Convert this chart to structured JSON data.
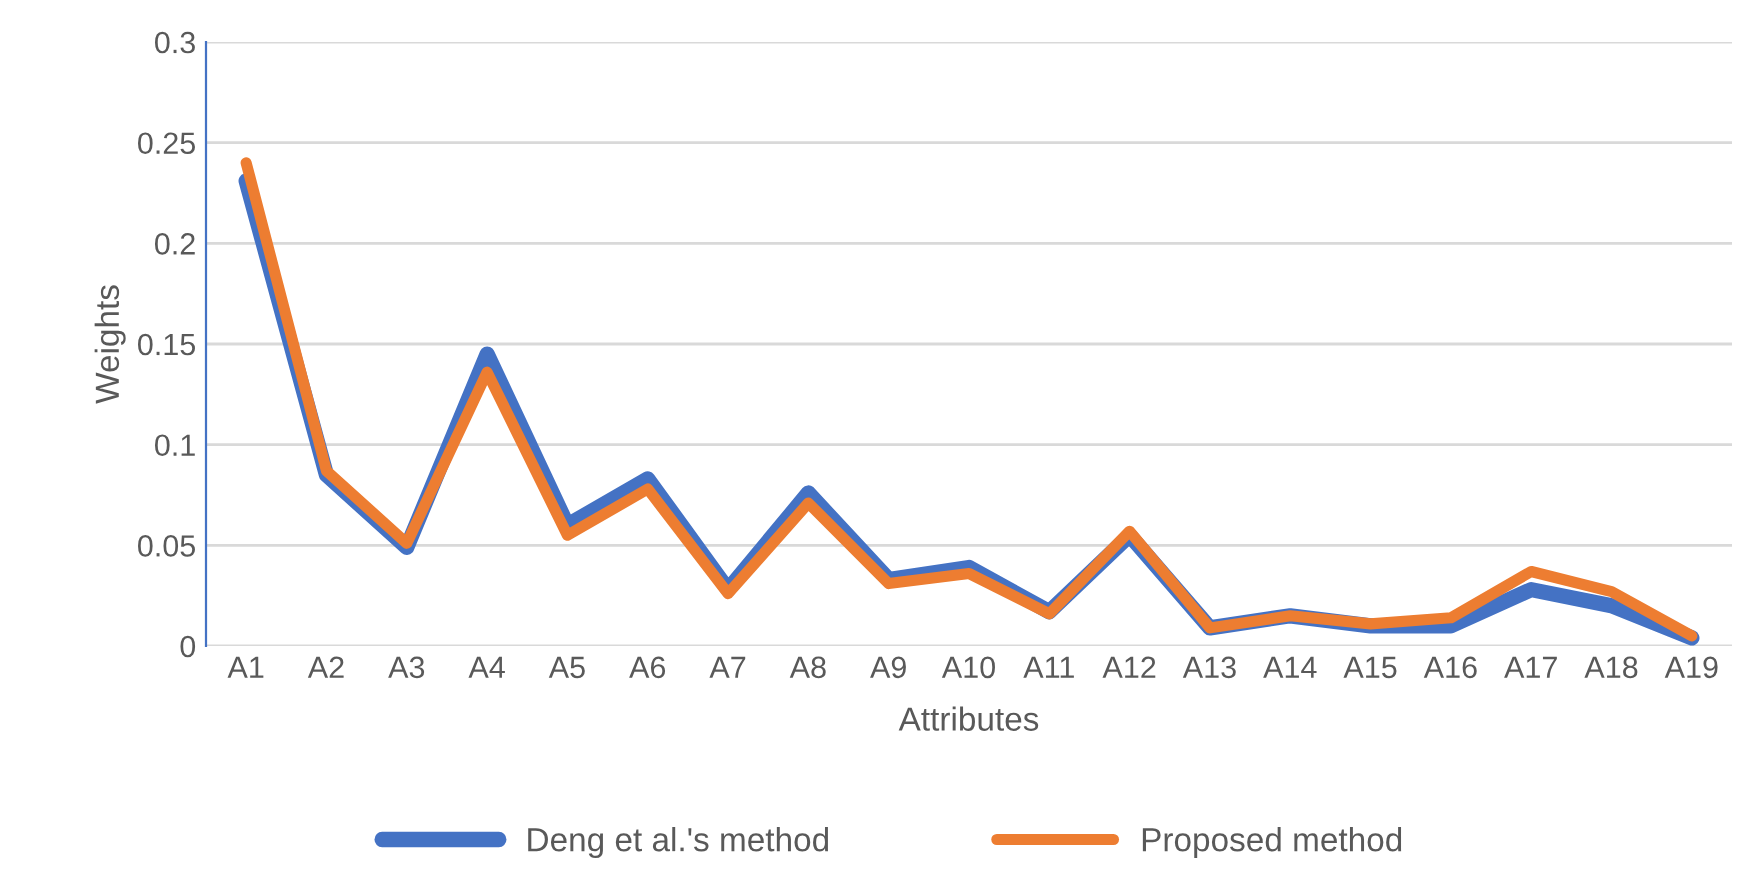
{
  "chart_data": {
    "type": "line",
    "xlabel": "Attributes",
    "ylabel": "Weights",
    "categories": [
      "A1",
      "A2",
      "A3",
      "A4",
      "A5",
      "A6",
      "A7",
      "A8",
      "A9",
      "A10",
      "A11",
      "A12",
      "A13",
      "A14",
      "A15",
      "A16",
      "A17",
      "A18",
      "A19"
    ],
    "series": [
      {
        "name": "Deng et al.'s method",
        "color": "#4472c4",
        "values": [
          0.231,
          0.085,
          0.049,
          0.145,
          0.06,
          0.083,
          0.028,
          0.076,
          0.033,
          0.039,
          0.017,
          0.055,
          0.009,
          0.015,
          0.01,
          0.01,
          0.028,
          0.02,
          0.004
        ]
      },
      {
        "name": "Proposed method",
        "color": "#ed7d31",
        "values": [
          0.24,
          0.087,
          0.051,
          0.136,
          0.055,
          0.078,
          0.026,
          0.071,
          0.031,
          0.036,
          0.016,
          0.057,
          0.009,
          0.015,
          0.011,
          0.014,
          0.037,
          0.027,
          0.005
        ]
      }
    ],
    "ylim": [
      0,
      0.3
    ],
    "yticks": [
      0,
      0.05,
      0.1,
      0.15,
      0.2,
      0.25,
      0.3
    ],
    "grid": "y",
    "legend": "bottom",
    "marker": "none",
    "line_style": "solid"
  }
}
